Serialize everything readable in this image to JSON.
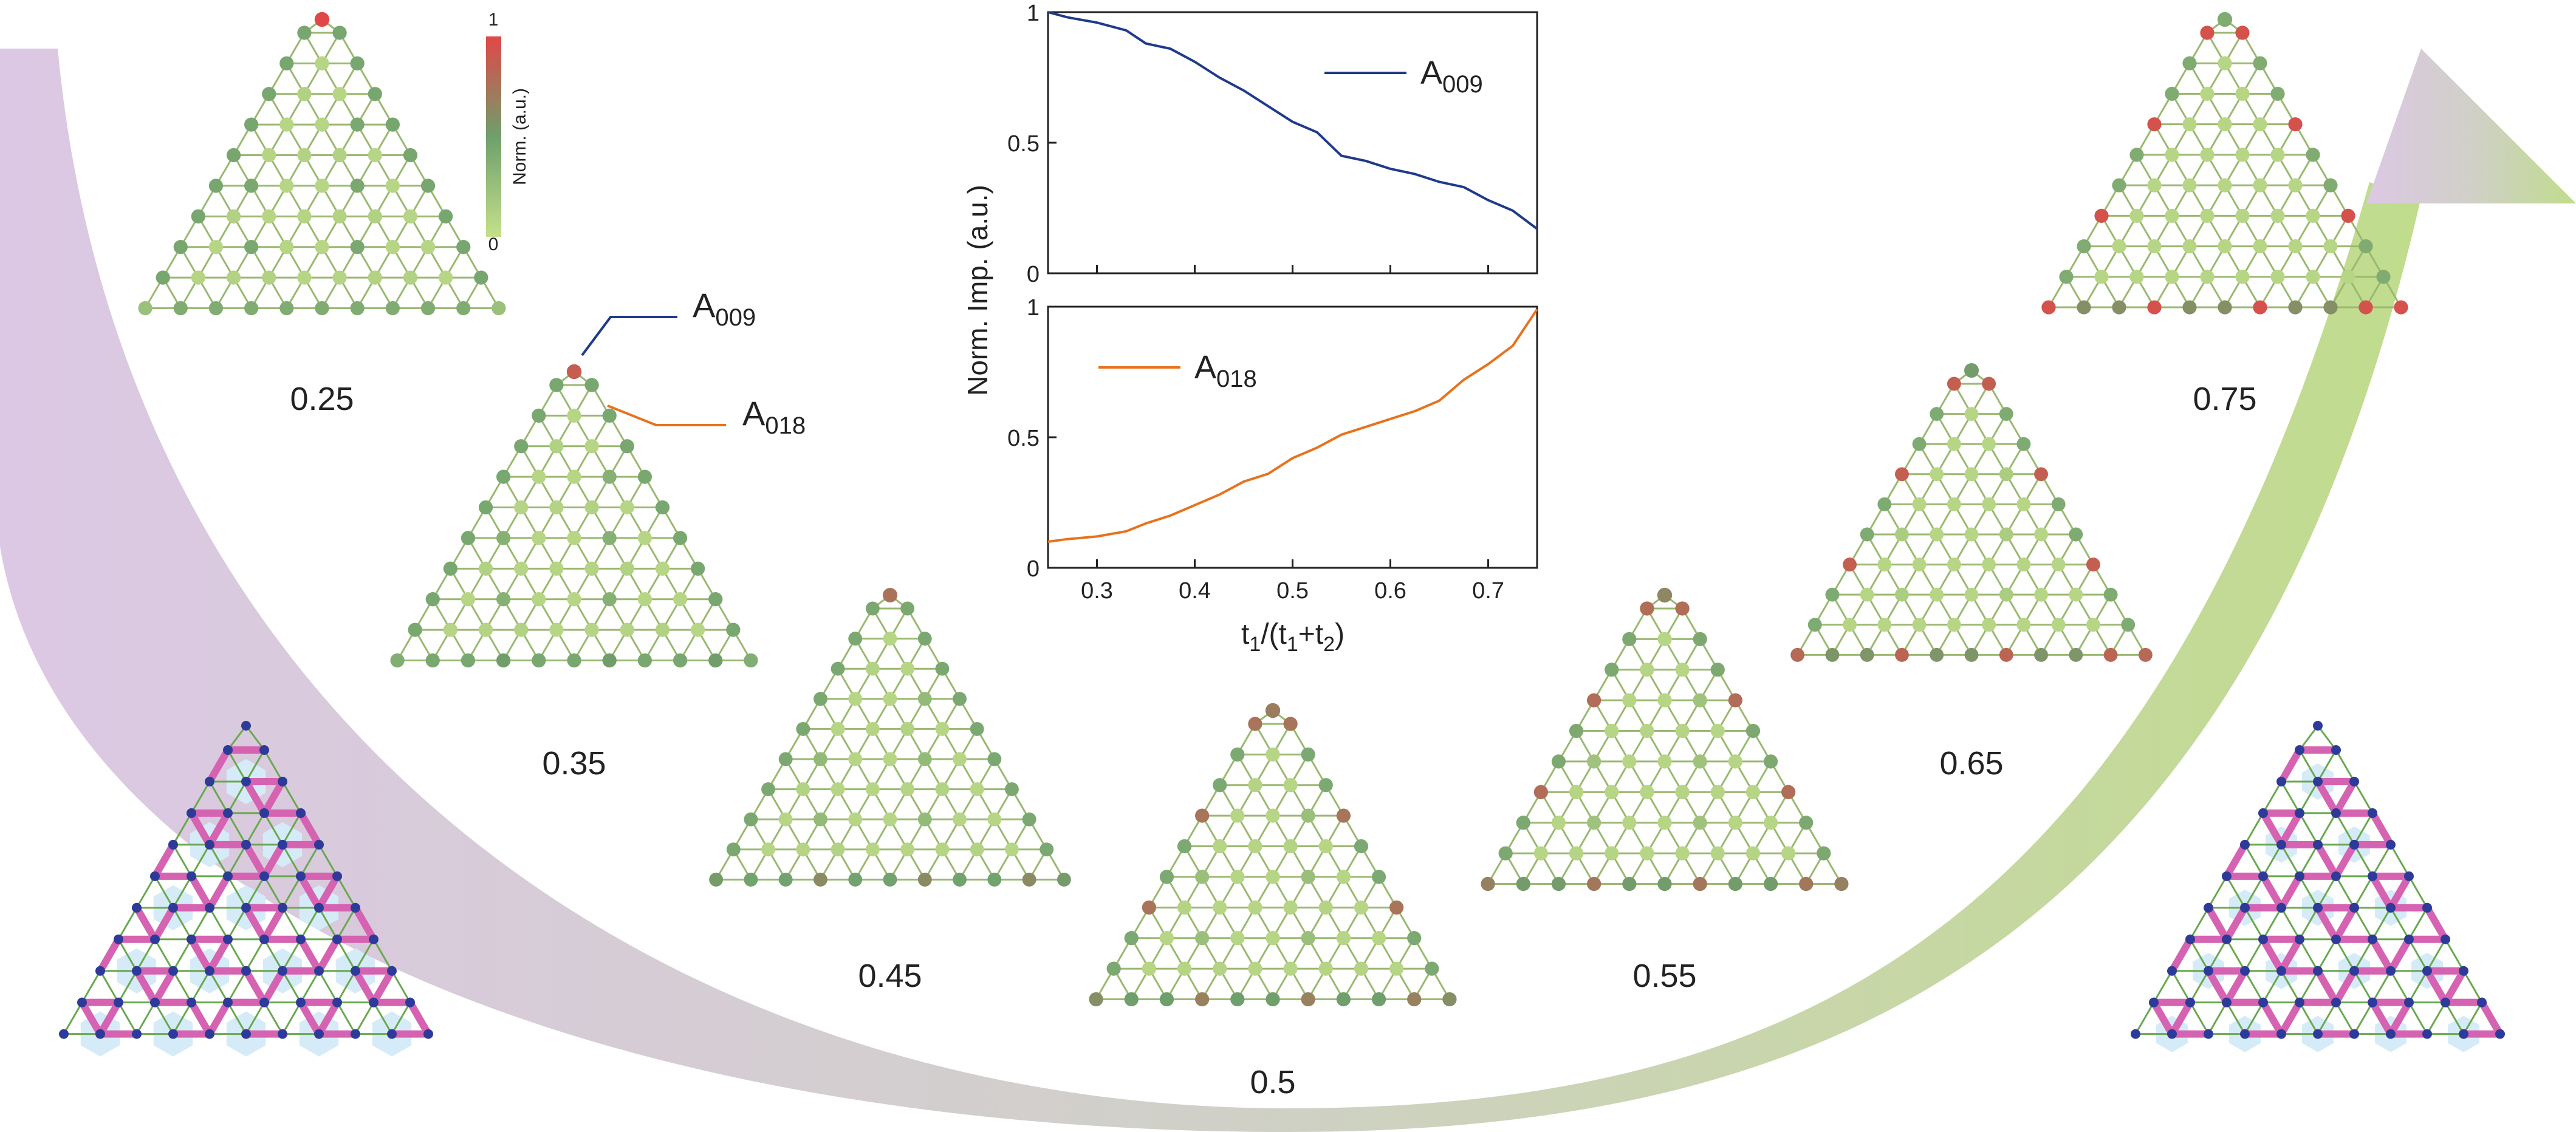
{
  "colors": {
    "arrow_start": "#dcc8e4",
    "arrow_mid": "#d0d0c8",
    "arrow_end": "#c0dc8c",
    "node_low": "#c5e08a",
    "node_mid": "#6f9f6c",
    "node_high": "#e04848",
    "link": "#9ab870",
    "series_a009": "#1f3a8a",
    "series_a018": "#e8721c",
    "bond_strong": "#d563b1",
    "bond_weak": "#6aa84f",
    "bond_node": "#2e3a9a",
    "hex_shade": "#d6ebf8"
  },
  "colorbar": {
    "max_label": "1",
    "min_label": "0",
    "label": "Norm. (a.u.)"
  },
  "annotations": {
    "a009_base": "A",
    "a009_sub": "009",
    "a018_base": "A",
    "a018_sub": "018"
  },
  "panels": [
    {
      "label": "0.25",
      "t": 0.25
    },
    {
      "label": "0.35",
      "t": 0.35
    },
    {
      "label": "0.45",
      "t": 0.45
    },
    {
      "label": "0.5",
      "t": 0.5
    },
    {
      "label": "0.55",
      "t": 0.55
    },
    {
      "label": "0.65",
      "t": 0.65
    },
    {
      "label": "0.75",
      "t": 0.75
    }
  ],
  "chart_data": {
    "type": "line",
    "ylabel": "Norm. Imp.  (a.u.)",
    "xlabel_parts": [
      "t",
      "1",
      "/(t",
      "1",
      "+t",
      "2",
      ")"
    ],
    "xlim": [
      0.25,
      0.75
    ],
    "xticks": [
      "0.3",
      "0.4",
      "0.5",
      "0.6",
      "0.7"
    ],
    "ylim": [
      0,
      1
    ],
    "yticks": [
      "0",
      "0.5",
      "1"
    ],
    "grid": false,
    "series": [
      {
        "name": "A009",
        "label_base": "A",
        "label_sub": "009",
        "panel": "top",
        "x": [
          0.25,
          0.27,
          0.3,
          0.33,
          0.35,
          0.375,
          0.4,
          0.425,
          0.45,
          0.475,
          0.5,
          0.525,
          0.55,
          0.575,
          0.6,
          0.625,
          0.65,
          0.675,
          0.7,
          0.725,
          0.75
        ],
        "values": [
          1.0,
          0.98,
          0.96,
          0.93,
          0.88,
          0.86,
          0.81,
          0.75,
          0.7,
          0.64,
          0.58,
          0.54,
          0.45,
          0.43,
          0.4,
          0.38,
          0.35,
          0.33,
          0.28,
          0.24,
          0.17
        ]
      },
      {
        "name": "A018",
        "label_base": "A",
        "label_sub": "018",
        "panel": "bottom",
        "x": [
          0.25,
          0.27,
          0.3,
          0.33,
          0.35,
          0.375,
          0.4,
          0.425,
          0.45,
          0.475,
          0.5,
          0.525,
          0.55,
          0.575,
          0.6,
          0.625,
          0.65,
          0.675,
          0.7,
          0.725,
          0.75
        ],
        "values": [
          0.1,
          0.11,
          0.12,
          0.14,
          0.17,
          0.2,
          0.24,
          0.28,
          0.33,
          0.36,
          0.42,
          0.46,
          0.51,
          0.54,
          0.57,
          0.6,
          0.64,
          0.72,
          0.78,
          0.85,
          0.99
        ]
      }
    ]
  }
}
